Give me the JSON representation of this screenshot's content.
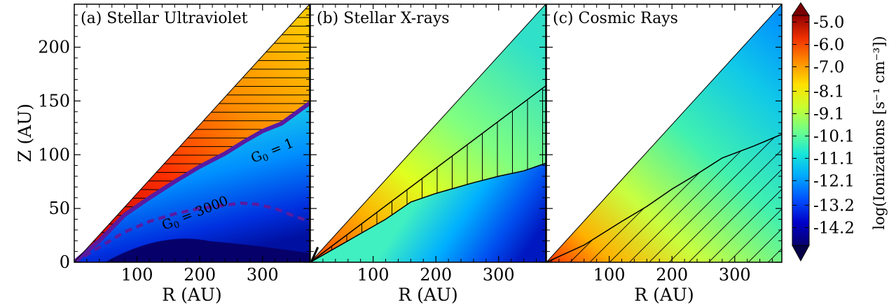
{
  "chart_data": {
    "type": "heatmap",
    "shared": {
      "xlabel": "R (AU)",
      "ylabel": "Z (AU)",
      "xlim": [
        0,
        375
      ],
      "ylim": [
        0,
        240
      ],
      "xticks": [
        "100",
        "200",
        "300"
      ],
      "xtick_values": [
        100,
        200,
        300
      ],
      "yticks": [
        "0",
        "50",
        "100",
        "150",
        "200"
      ],
      "ytick_values": [
        0,
        50,
        100,
        150,
        200
      ]
    },
    "panels": [
      {
        "title": "(a) Stellar Ultraviolet",
        "surface_slope": 0.64,
        "annotations": [
          {
            "text": "G",
            "sub": "0",
            "rest": " = 1",
            "r": 318,
            "z": 100
          },
          {
            "text": "G",
            "sub": "0",
            "rest": " = 3000",
            "r": 195,
            "z": 42
          }
        ],
        "contours": [
          {
            "name": "G0 = 1",
            "style": "solid",
            "r": [
              0,
              40,
              80,
              120,
              160,
              200,
              240,
              270,
              300,
              330,
              375
            ],
            "z": [
              0,
              20,
              44,
              60,
              75,
              89,
              101,
              112,
              122,
              129,
              148
            ]
          },
          {
            "name": "G0 = 3000",
            "style": "dashed",
            "r": [
              0,
              40,
              80,
              120,
              160,
              200,
              240,
              265,
              290,
              320,
              350,
              375
            ],
            "z": [
              0,
              14,
              28,
              38,
              45,
              50,
              53,
              55,
              54,
              50,
              43,
              38
            ]
          }
        ],
        "hatched_region": "above G0 = 1 to disk surface"
      },
      {
        "title": "(b) Stellar X-rays",
        "surface_slope": 0.64,
        "region_upper": {
          "r": [
            0,
            375
          ],
          "z": [
            0,
            164
          ]
        },
        "region_lower": {
          "r": [
            0,
            60,
            120,
            160,
            200,
            260,
            300,
            340,
            375
          ],
          "z": [
            0,
            20,
            40,
            56,
            64,
            74,
            80,
            85,
            92
          ]
        },
        "hatched_region": "between stepped boundaries"
      },
      {
        "title": "(c) Cosmic Rays",
        "surface_slope": 0.64,
        "region_upper": {
          "r": [
            0,
            60,
            120,
            160,
            200,
            240,
            280,
            330,
            375
          ],
          "z": [
            0,
            16,
            38,
            52,
            68,
            82,
            97,
            108,
            119
          ]
        },
        "hatched_region": "below boundary"
      }
    ],
    "colorbar": {
      "label": "log(Ionizations [s⁻¹ cm⁻³])",
      "ticks": [
        "-5.0",
        "-6.0",
        "-7.0",
        "-8.1",
        "-9.1",
        "-10.1",
        "-11.1",
        "-12.1",
        "-13.2",
        "-14.2"
      ],
      "tick_values": [
        -5.0,
        -6.0,
        -7.0,
        -8.1,
        -9.1,
        -10.1,
        -11.1,
        -12.1,
        -13.2,
        -14.2
      ],
      "range": [
        -15.0,
        -4.7
      ],
      "colormap": [
        "#08006e",
        "#0000c8",
        "#0050ff",
        "#00a8ff",
        "#18e8d8",
        "#70ff88",
        "#c8ff30",
        "#ffe000",
        "#ff8c00",
        "#f03000",
        "#900000"
      ]
    }
  }
}
